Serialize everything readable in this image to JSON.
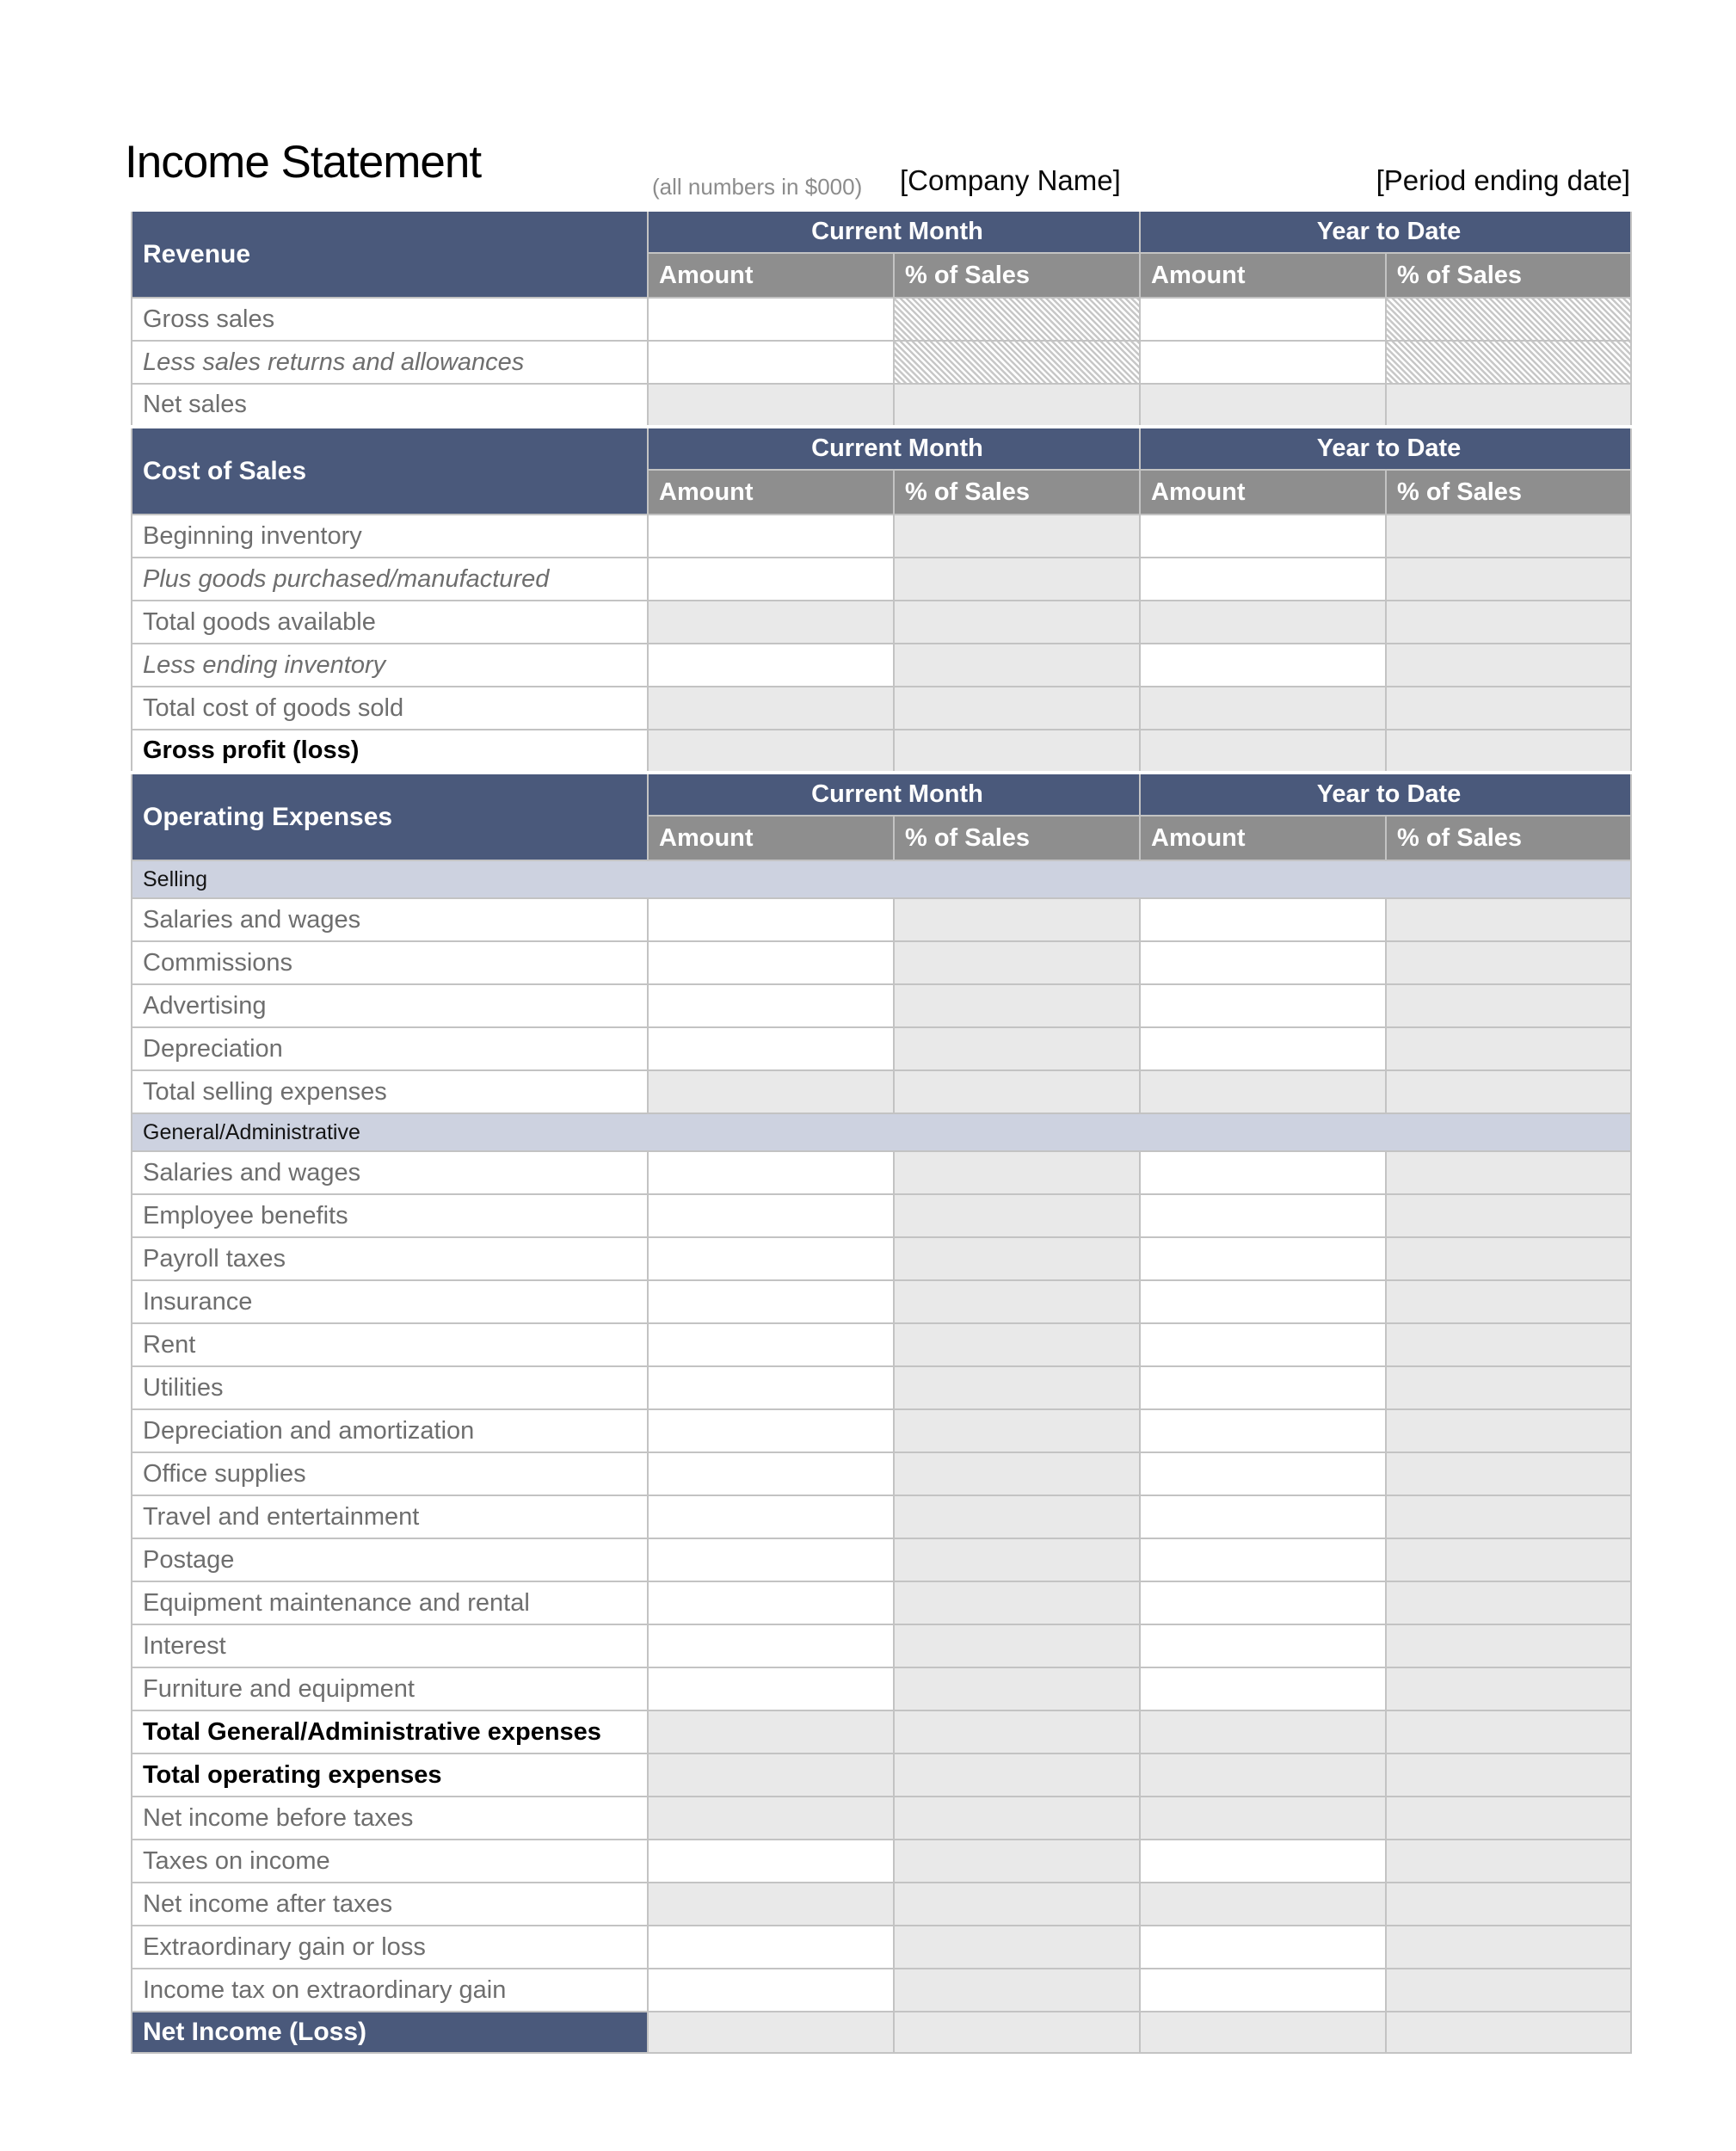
{
  "header": {
    "title": "Income Statement",
    "note": "(all numbers in $000)",
    "company": "[Company Name]",
    "period": "[Period ending date]"
  },
  "columns": {
    "current_month": "Current Month",
    "year_to_date": "Year to Date",
    "amount": "Amount",
    "pct_of_sales": "% of Sales"
  },
  "colors": {
    "section_header": "#4a597b",
    "column_header": "#8e8e8e",
    "calculated_cell": "#e9e9e9",
    "subsection_band": "#cdd2e0",
    "grid_line": "#c3c3c3",
    "label_text": "#6e6e6e"
  },
  "sections": [
    {
      "header": "Revenue",
      "rows": [
        {
          "label": "Gross sales",
          "variant": "normal",
          "cells": "input_hatch"
        },
        {
          "label": "Less sales returns and allowances",
          "variant": "italic",
          "cells": "input_hatch"
        },
        {
          "label": "Net sales",
          "variant": "normal",
          "cells": "calc"
        }
      ]
    },
    {
      "header": "Cost of Sales",
      "rows": [
        {
          "label": "Beginning inventory",
          "variant": "normal",
          "cells": "input"
        },
        {
          "label": "Plus goods purchased/manufactured",
          "variant": "italic",
          "cells": "input"
        },
        {
          "label": "Total goods available",
          "variant": "normal",
          "cells": "calc"
        },
        {
          "label": "Less ending inventory",
          "variant": "italic",
          "cells": "input"
        },
        {
          "label": "Total cost of goods sold",
          "variant": "normal",
          "cells": "calc"
        },
        {
          "label": "Gross profit (loss)",
          "variant": "bold",
          "cells": "calc"
        }
      ]
    },
    {
      "header": "Operating Expenses",
      "rows": [
        {
          "label": "Selling",
          "type": "subsection"
        },
        {
          "label": "Salaries and wages",
          "variant": "normal",
          "cells": "input"
        },
        {
          "label": "Commissions",
          "variant": "normal",
          "cells": "input"
        },
        {
          "label": "Advertising",
          "variant": "normal",
          "cells": "input"
        },
        {
          "label": "Depreciation",
          "variant": "normal",
          "cells": "input"
        },
        {
          "label": "Total selling expenses",
          "variant": "normal",
          "cells": "calc"
        },
        {
          "label": "General/Administrative",
          "type": "subsection"
        },
        {
          "label": "Salaries and wages",
          "variant": "normal",
          "cells": "input"
        },
        {
          "label": "Employee benefits",
          "variant": "normal",
          "cells": "input"
        },
        {
          "label": "Payroll taxes",
          "variant": "normal",
          "cells": "input"
        },
        {
          "label": "Insurance",
          "variant": "normal",
          "cells": "input"
        },
        {
          "label": "Rent",
          "variant": "normal",
          "cells": "input"
        },
        {
          "label": "Utilities",
          "variant": "normal",
          "cells": "input"
        },
        {
          "label": "Depreciation and amortization",
          "variant": "normal",
          "cells": "input"
        },
        {
          "label": "Office supplies",
          "variant": "normal",
          "cells": "input"
        },
        {
          "label": "Travel and entertainment",
          "variant": "normal",
          "cells": "input"
        },
        {
          "label": "Postage",
          "variant": "normal",
          "cells": "input"
        },
        {
          "label": "Equipment maintenance and rental",
          "variant": "normal",
          "cells": "input"
        },
        {
          "label": "Interest",
          "variant": "normal",
          "cells": "input"
        },
        {
          "label": "Furniture and equipment",
          "variant": "normal",
          "cells": "input"
        },
        {
          "label": "Total General/Administrative expenses",
          "variant": "bold",
          "cells": "calc"
        },
        {
          "label": "Total operating expenses",
          "variant": "bold",
          "cells": "calc"
        },
        {
          "label": "Net income before taxes",
          "variant": "normal",
          "cells": "calc"
        },
        {
          "label": "Taxes on income",
          "variant": "normal",
          "cells": "input"
        },
        {
          "label": "Net income after taxes",
          "variant": "normal",
          "cells": "calc"
        },
        {
          "label": "Extraordinary gain or loss",
          "variant": "normal",
          "cells": "input"
        },
        {
          "label": "Income tax on extraordinary gain",
          "variant": "normal",
          "cells": "input"
        }
      ]
    }
  ],
  "footer_row": {
    "label": "Net Income (Loss)",
    "cells": "calc"
  }
}
